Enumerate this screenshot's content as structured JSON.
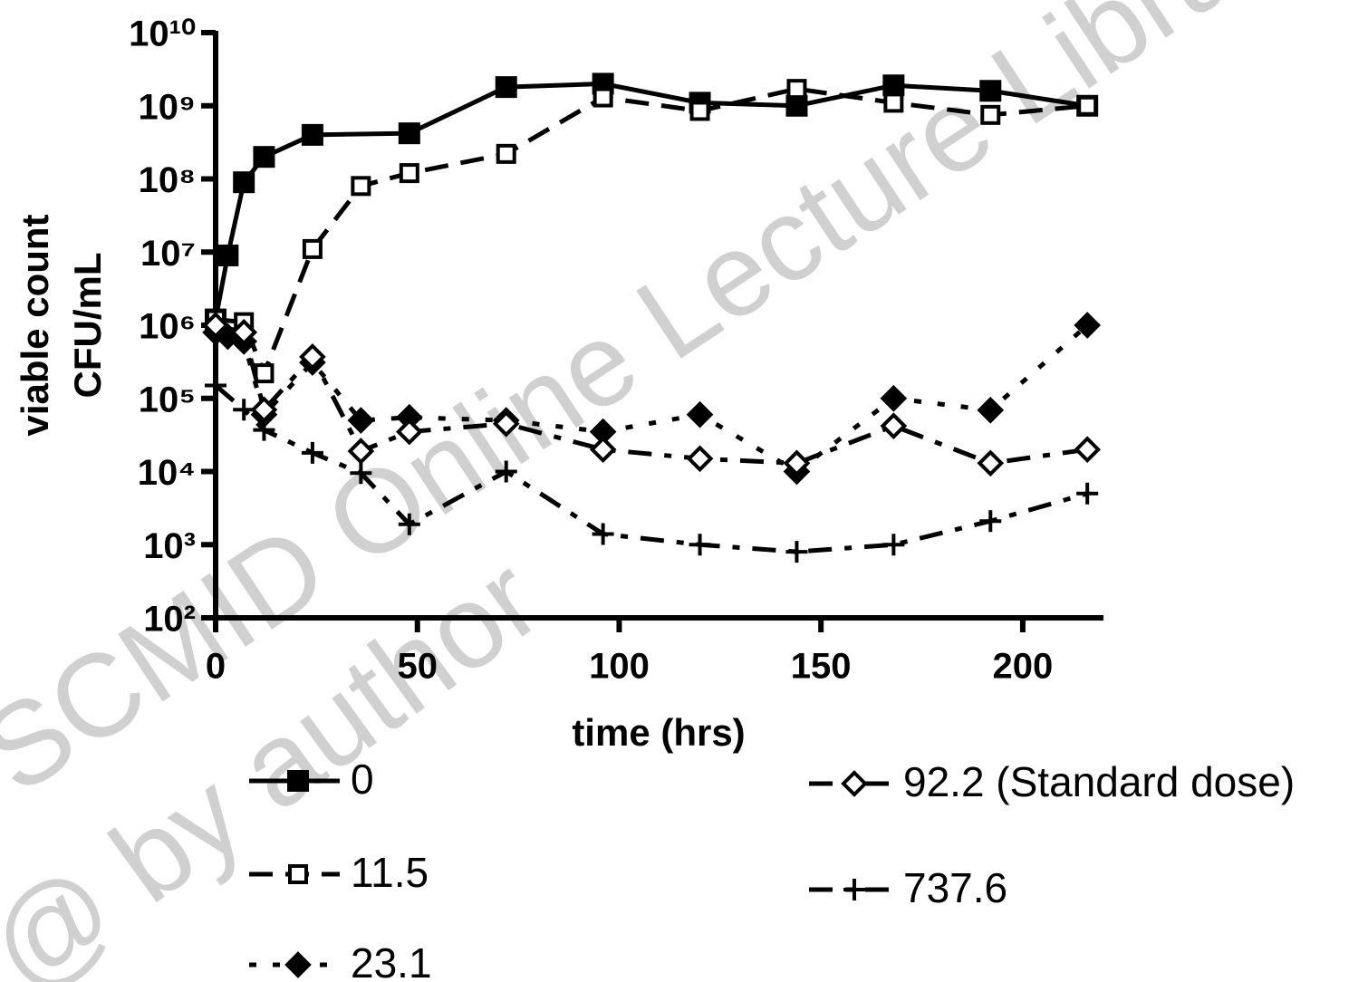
{
  "chart_data": {
    "type": "line",
    "x_label": "time (hrs)",
    "y_label": [
      "viable count",
      "CFU/mL"
    ],
    "watermark": [
      "SCMID Online Lecture Library",
      "@ by author"
    ],
    "log_y": true,
    "legend": "bottom",
    "xlim": [
      0,
      220
    ],
    "xticks": [
      0,
      50,
      100,
      150,
      200
    ],
    "ylim": [
      100,
      10000000000
    ],
    "yticks": [
      {
        "value": 100,
        "label": "10²"
      },
      {
        "value": 1000,
        "label": "10³"
      },
      {
        "value": 10000,
        "label": "10⁴"
      },
      {
        "value": 100000,
        "label": "10⁵"
      },
      {
        "value": 1000000,
        "label": "10⁶"
      },
      {
        "value": 10000000,
        "label": "10⁷"
      },
      {
        "value": 100000000,
        "label": "10⁸"
      },
      {
        "value": 1000000000,
        "label": "10⁹"
      },
      {
        "value": 10000000000,
        "label": "10¹⁰"
      }
    ],
    "series": [
      {
        "name": "0",
        "color": "#000000",
        "dash": "solid",
        "marker": "square-filled",
        "x": [
          0,
          3,
          7,
          12,
          24,
          48,
          72,
          96,
          120,
          144,
          168,
          192,
          216
        ],
        "values": [
          1200000,
          9000000,
          90000000,
          200000000,
          400000000,
          420000000,
          1800000000,
          2000000000,
          1100000000,
          1000000000,
          1900000000,
          1600000000,
          1000000000
        ]
      },
      {
        "name": "11.5",
        "color": "#000000",
        "dash": "dash",
        "marker": "square-open",
        "x": [
          0,
          7,
          12,
          24,
          36,
          48,
          72,
          96,
          120,
          144,
          168,
          192,
          216
        ],
        "values": [
          1200000,
          1100000,
          220000,
          11000000,
          80000000,
          120000000,
          220000000,
          1300000000,
          850000000,
          1700000000,
          1100000000,
          750000000,
          1000000000
        ]
      },
      {
        "name": "23.1",
        "color": "#000000",
        "dash": "dot",
        "marker": "diamond-filled",
        "x": [
          0,
          3,
          7,
          12,
          24,
          36,
          48,
          72,
          96,
          120,
          144,
          168,
          192,
          216
        ],
        "values": [
          800000,
          700000,
          600000,
          60000,
          310000,
          50000,
          55000,
          50000,
          35000,
          60000,
          10000,
          100000,
          69000,
          1000000
        ]
      },
      {
        "name": "92.2 (Standard dose)",
        "color": "#000000",
        "dash": "dashdot",
        "marker": "diamond-open",
        "x": [
          0,
          7,
          12,
          24,
          36,
          48,
          72,
          96,
          120,
          144,
          168,
          192,
          216
        ],
        "values": [
          1000000,
          800000,
          70000,
          370000,
          19000,
          35000,
          45000,
          20000,
          15000,
          13000,
          42000,
          13000,
          20000
        ]
      },
      {
        "name": "737.6",
        "color": "#000000",
        "dash": "dashdot",
        "marker": "plus",
        "x": [
          0,
          7,
          12,
          24,
          36,
          48,
          72,
          96,
          120,
          144,
          168,
          192,
          216
        ],
        "values": [
          150000,
          70000,
          37000,
          18000,
          9500,
          1900,
          10000,
          1400,
          1000,
          800,
          1000,
          2100,
          5000
        ]
      }
    ]
  }
}
